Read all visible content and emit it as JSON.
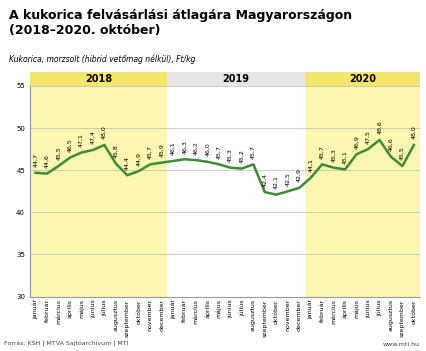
{
  "chart_data": {
    "type": "line",
    "title": "A kukorica felvásárlási átlagára Magyarországon\n(2018–2020. október)",
    "subtitle": "Kukorica, morzsolt (hibrid vetőmag nélkül), Ft/kg",
    "source": "Forrás: KSH | MTVA Sajtóarchívum | MTI",
    "website": "www.mti.hu",
    "categories": [
      "január",
      "február",
      "március",
      "április",
      "május",
      "június",
      "július",
      "augusztus",
      "szeptember",
      "október",
      "november",
      "december",
      "január",
      "február",
      "március",
      "április",
      "május",
      "június",
      "július",
      "augusztus",
      "szeptember",
      "október",
      "november",
      "december",
      "január",
      "február",
      "március",
      "április",
      "május",
      "június",
      "július",
      "augusztus",
      "szeptember",
      "október"
    ],
    "values": [
      44.7,
      44.6,
      45.5,
      46.5,
      47.1,
      47.4,
      48.0,
      45.8,
      44.4,
      44.9,
      45.7,
      45.9,
      46.1,
      46.3,
      46.2,
      46.0,
      45.7,
      45.3,
      45.2,
      45.7,
      42.4,
      42.1,
      42.5,
      42.9,
      44.1,
      45.7,
      45.3,
      45.1,
      46.9,
      47.5,
      48.6,
      46.6,
      45.5,
      48.0
    ],
    "value_labels": [
      "44,7",
      "44,6",
      "45,5",
      "46,5",
      "47,1",
      "47,4",
      "48,0",
      "45,8",
      "44,4",
      "44,9",
      "45,7",
      "45,9",
      "46,1",
      "46,3",
      "46,2",
      "46,0",
      "45,7",
      "45,3",
      "45,2",
      "45,7",
      "42,4",
      "42,1",
      "42,5",
      "42,9",
      "44,1",
      "45,7",
      "45,3",
      "45,1",
      "46,9",
      "47,5",
      "48,6",
      "46,6",
      "45,5",
      "48,0"
    ],
    "year_groups": [
      {
        "label": "2018",
        "months": 12,
        "highlight": true
      },
      {
        "label": "2019",
        "months": 12,
        "highlight": false
      },
      {
        "label": "2020",
        "months": 10,
        "highlight": true
      }
    ],
    "color": "#3d8b37",
    "ylim": [
      30,
      55
    ],
    "yticks": [
      30,
      35,
      40,
      45,
      50,
      55
    ],
    "grid": true,
    "data_labels": true
  }
}
